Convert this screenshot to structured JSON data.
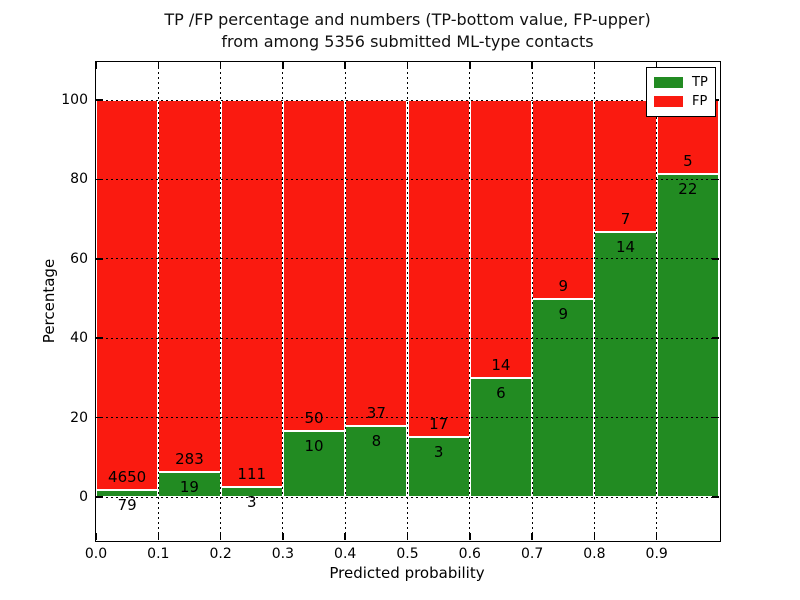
{
  "title": {
    "line1": "TP /FP percentage and numbers (TP-bottom value, FP-upper)",
    "line2": "from among 5356 submitted ML-type contacts"
  },
  "axes": {
    "x_label": "Predicted probability",
    "y_label": "Percentage",
    "x_ticks": [
      "0.0",
      "0.1",
      "0.2",
      "0.3",
      "0.4",
      "0.5",
      "0.6",
      "0.7",
      "0.8",
      "0.9"
    ],
    "y_ticks": [
      "0",
      "20",
      "40",
      "60",
      "80",
      "100"
    ]
  },
  "legend": {
    "entries": [
      {
        "label": "TP",
        "color": "#228b22"
      },
      {
        "label": "FP",
        "color": "#fa1a10"
      }
    ]
  },
  "colors": {
    "tp_green": "#228b22",
    "fp_red": "#fa1a10",
    "grid": "#000000",
    "background": "#ffffff"
  },
  "chart_data": {
    "type": "bar",
    "stacked": true,
    "title": "TP /FP percentage and numbers (TP-bottom value, FP-upper) from among 5356 submitted ML-type contacts",
    "xlabel": "Predicted probability",
    "ylabel": "Percentage",
    "total_contacts": 5356,
    "bin_edges": [
      0.0,
      0.1,
      0.2,
      0.3,
      0.4,
      0.5,
      0.6,
      0.7,
      0.8,
      0.9,
      1.0
    ],
    "series": [
      {
        "name": "TP",
        "color": "#228b22",
        "counts": [
          79,
          19,
          3,
          10,
          8,
          3,
          6,
          9,
          14,
          22
        ],
        "percent": [
          1.67,
          6.29,
          2.63,
          16.67,
          17.78,
          15.0,
          30.0,
          50.0,
          66.67,
          81.48
        ]
      },
      {
        "name": "FP",
        "color": "#fa1a10",
        "counts": [
          4650,
          283,
          111,
          50,
          37,
          17,
          14,
          9,
          7,
          5
        ],
        "percent": [
          98.33,
          93.71,
          97.37,
          83.33,
          82.22,
          85.0,
          70.0,
          50.0,
          33.33,
          18.52
        ]
      }
    ],
    "xlim": [
      0.0,
      1.0
    ],
    "ylim": [
      -11,
      110
    ],
    "grid": true,
    "grid_style": "dotted",
    "legend_position": "upper right",
    "annotation_rule": "FP count printed above green/red boundary, TP count printed below it"
  }
}
